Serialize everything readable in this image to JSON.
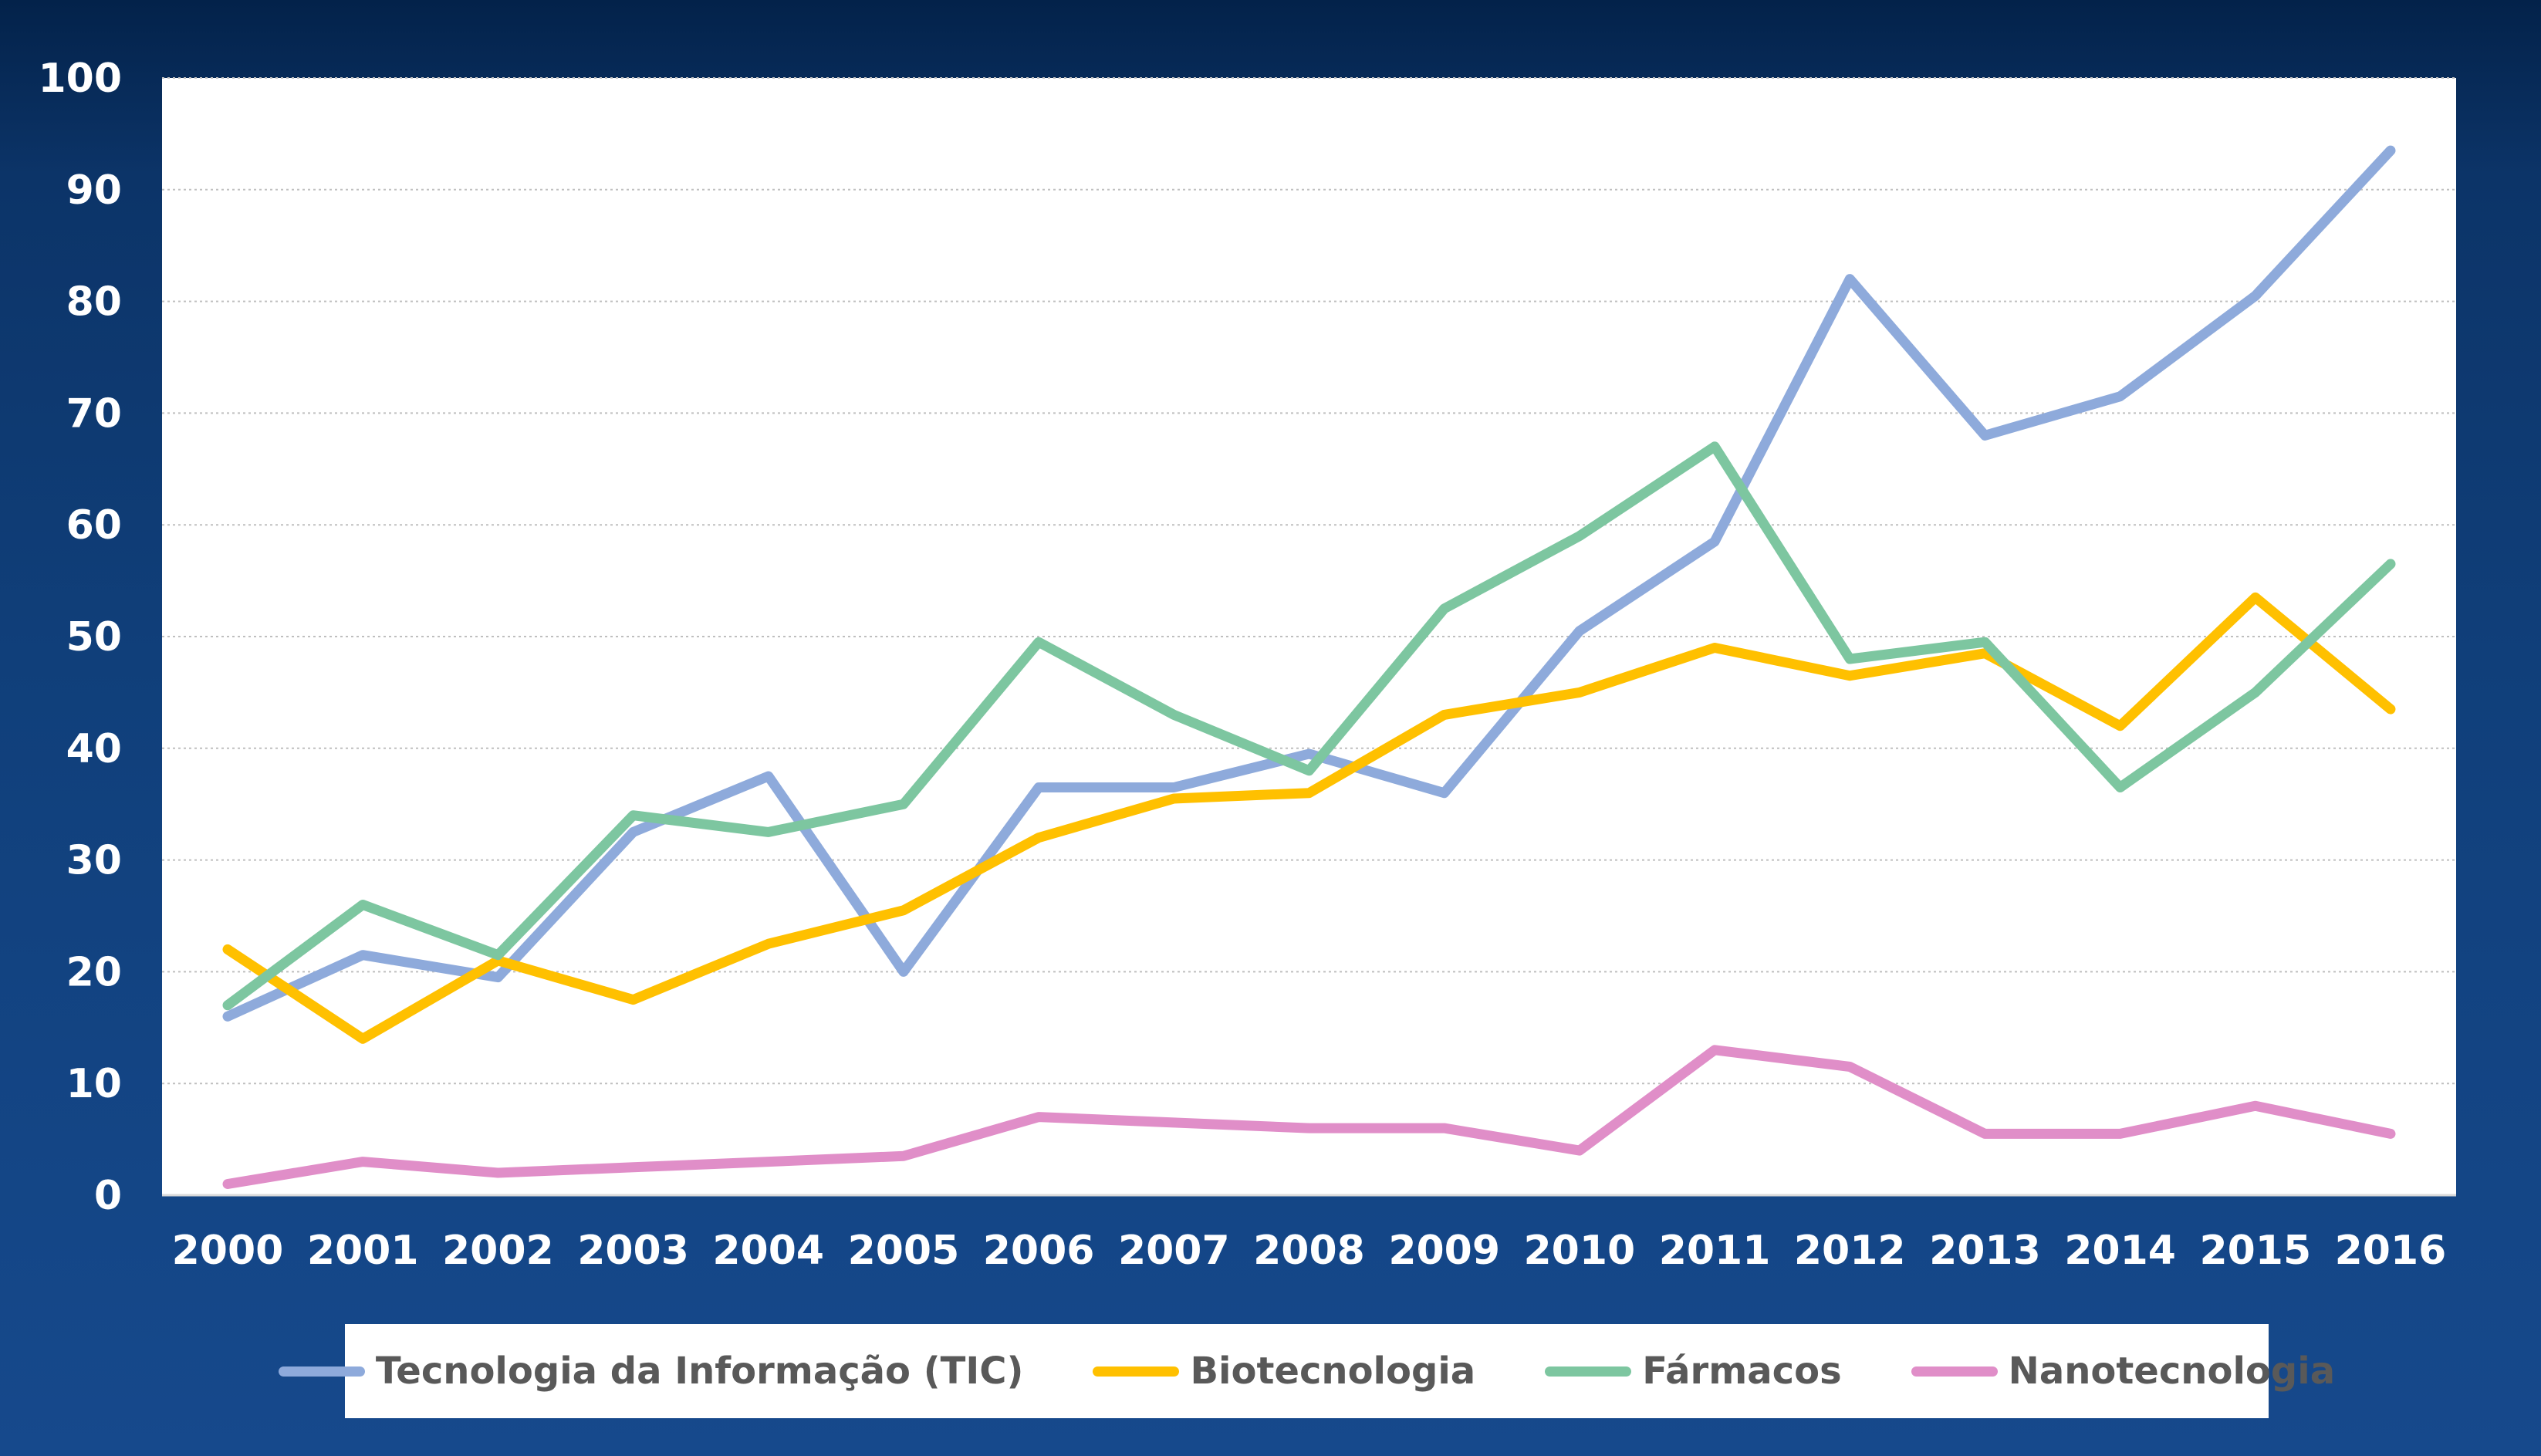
{
  "chart_data": {
    "type": "line",
    "categories": [
      "2000",
      "2001",
      "2002",
      "2003",
      "2004",
      "2005",
      "2006",
      "2007",
      "2008",
      "2009",
      "2010",
      "2011",
      "2012",
      "2013",
      "2014",
      "2015",
      "2016"
    ],
    "ylim": [
      0,
      100
    ],
    "yticks": [
      0,
      10,
      20,
      30,
      40,
      50,
      60,
      70,
      80,
      90,
      100
    ],
    "ytick_labels": [
      "0",
      "10",
      "20",
      "30",
      "40",
      "50",
      "60",
      "70",
      "80",
      "90",
      "100"
    ],
    "grid": "horizontal dotted",
    "legend_position": "bottom",
    "series": [
      {
        "name": "Tecnologia da Informação (TIC)",
        "color": "#8eaadb",
        "values": [
          16,
          21.5,
          19.5,
          32.5,
          37.5,
          20,
          36.5,
          36.5,
          39.5,
          36,
          50.5,
          58.5,
          82,
          68,
          71.5,
          80.5,
          93.5
        ]
      },
      {
        "name": "Biotecnologia",
        "color": "#ffc000",
        "values": [
          22,
          14,
          21,
          17.5,
          22.5,
          25.5,
          32,
          35.5,
          36,
          43,
          45,
          49,
          46.5,
          48.5,
          42,
          53.5,
          43.5
        ]
      },
      {
        "name": "Fármacos",
        "color": "#7dc6a0",
        "values": [
          17,
          26,
          21.5,
          34,
          32.5,
          35,
          49.5,
          43,
          38,
          52.5,
          59,
          67,
          48,
          49.5,
          36.5,
          45,
          56.5
        ]
      },
      {
        "name": "Nanotecnologia",
        "color": "#e08ec8",
        "values": [
          1,
          3,
          2,
          2.5,
          3,
          3.5,
          7,
          6.5,
          6,
          6,
          4,
          13,
          11.5,
          5.5,
          5.5,
          8,
          5.5
        ]
      }
    ]
  },
  "legend": {
    "items": [
      {
        "label": "Tecnologia da Informação (TIC)"
      },
      {
        "label": "Biotecnologia"
      },
      {
        "label": "Fármacos"
      },
      {
        "label": "Nanotecnologia"
      }
    ]
  }
}
